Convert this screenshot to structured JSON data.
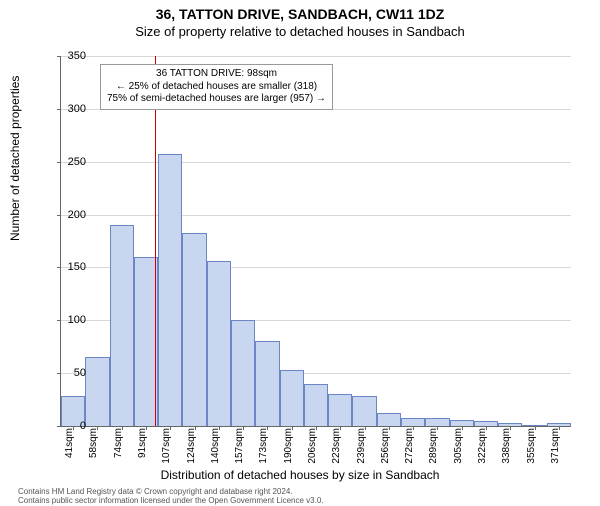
{
  "title_main": "36, TATTON DRIVE, SANDBACH, CW11 1DZ",
  "title_sub": "Size of property relative to detached houses in Sandbach",
  "y_axis_title": "Number of detached properties",
  "x_axis_title": "Distribution of detached houses by size in Sandbach",
  "footer_line1": "Contains HM Land Registry data © Crown copyright and database right 2024.",
  "footer_line2": "Contains public sector information licensed under the Open Government Licence v3.0.",
  "chart": {
    "type": "histogram",
    "bg_color": "#ffffff",
    "grid_color": "#d8d8d8",
    "axis_color": "#666666",
    "bar_fill": "#c9d6f0",
    "bar_stroke": "#6a86c3",
    "marker_color": "#cc0000",
    "y": {
      "min": 0,
      "max": 350,
      "step": 50
    },
    "bar_width_ratio": 1.0,
    "x_labels": [
      "41sqm",
      "58sqm",
      "74sqm",
      "91sqm",
      "107sqm",
      "124sqm",
      "140sqm",
      "157sqm",
      "173sqm",
      "190sqm",
      "206sqm",
      "223sqm",
      "239sqm",
      "256sqm",
      "272sqm",
      "289sqm",
      "305sqm",
      "322sqm",
      "338sqm",
      "355sqm",
      "371sqm"
    ],
    "values": [
      28,
      65,
      190,
      160,
      257,
      183,
      156,
      100,
      80,
      53,
      40,
      30,
      28,
      12,
      8,
      8,
      6,
      5,
      3,
      0,
      3
    ],
    "marker_index": 3.35,
    "label_fontsize": 11,
    "xlabel_fontsize": 10,
    "title_fontsize": 14
  },
  "annotation": {
    "line1": "36 TATTON DRIVE: 98sqm",
    "line2": "← 25% of detached houses are smaller (318)",
    "line3": "75% of semi-detached houses are larger (957) →"
  }
}
